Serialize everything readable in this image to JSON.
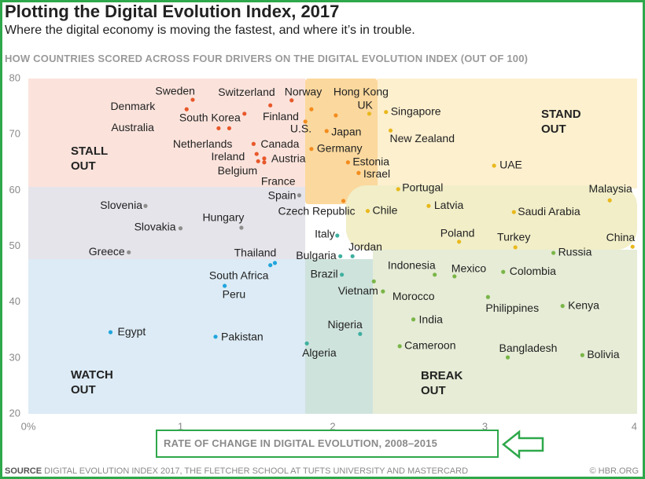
{
  "chart_data": {
    "type": "scatter",
    "title": "Plotting the Digital Evolution Index, 2017",
    "subtitle": "Where the digital economy is moving the fastest, and where it’s in trouble.",
    "heading": "HOW COUNTRIES SCORED ACROSS FOUR DRIVERS ON THE DIGITAL EVOLUTION INDEX (OUT OF 100)",
    "x_label": "RATE OF CHANGE IN DIGITAL EVOLUTION, 2008–2015",
    "source_label": "SOURCE",
    "source": "DIGITAL EVOLUTION INDEX 2017, THE FLETCHER SCHOOL AT TUFTS UNIVERSITY AND MASTERCARD",
    "credit": "© HBR.ORG",
    "quadrants": [
      "STALL OUT",
      "STAND OUT",
      "WATCH OUT",
      "BREAK OUT"
    ],
    "xlim": [
      0,
      4
    ],
    "ylim": [
      20,
      80
    ],
    "xticks": [
      {
        "value": 0,
        "label": "0%"
      },
      1,
      2,
      3,
      4
    ],
    "yticks": [
      20,
      30,
      40,
      50,
      60,
      70,
      80
    ],
    "points": [
      {
        "label": "Sweden",
        "x": 1.08,
        "y": 76.2,
        "color": "#e8582a"
      },
      {
        "label": "Denmark",
        "x": 1.04,
        "y": 74.5,
        "color": "#e8582a"
      },
      {
        "label": "Switzerland",
        "x": 1.59,
        "y": 75.2,
        "color": "#e8582a"
      },
      {
        "label": "Norway",
        "x": 1.73,
        "y": 76.1,
        "color": "#e8582a"
      },
      {
        "label": "Hong Kong",
        "x": 2.02,
        "y": 73.4,
        "color": "#f28c1e"
      },
      {
        "label": "UK",
        "x": 2.24,
        "y": 73.7,
        "color": "#e9b81c"
      },
      {
        "label": "Singapore",
        "x": 2.35,
        "y": 74.0,
        "color": "#e9b81c"
      },
      {
        "label": "Finland",
        "x": 1.86,
        "y": 74.5,
        "color": "#f28c1e"
      },
      {
        "label": "South Korea",
        "x": 1.42,
        "y": 73.7,
        "color": "#e8582a"
      },
      {
        "label": "Australia",
        "x": 1.25,
        "y": 71.1,
        "color": "#e8582a"
      },
      {
        "label": "U.S.",
        "x": 1.82,
        "y": 72.3,
        "color": "#f28c1e"
      },
      {
        "label": "Japan",
        "x": 1.96,
        "y": 70.6,
        "color": "#f28c1e"
      },
      {
        "label": "New Zealand",
        "x": 2.38,
        "y": 70.7,
        "color": "#e9b81c"
      },
      {
        "label": "Netherlands",
        "x": 1.32,
        "y": 71.1,
        "color": "#e8582a"
      },
      {
        "label": "Canada",
        "x": 1.48,
        "y": 68.3,
        "color": "#e8582a"
      },
      {
        "label": "Germany",
        "x": 1.86,
        "y": 67.4,
        "color": "#f28c1e"
      },
      {
        "label": "Ireland",
        "x": 1.5,
        "y": 66.5,
        "color": "#e8582a"
      },
      {
        "label": "Austria",
        "x": 1.55,
        "y": 65.7,
        "color": "#e8582a"
      },
      {
        "label": "Belgium",
        "x": 1.51,
        "y": 65.2,
        "color": "#e8582a"
      },
      {
        "label": "France",
        "x": 1.55,
        "y": 65.0,
        "color": "#e8582a"
      },
      {
        "label": "Estonia",
        "x": 2.1,
        "y": 65.0,
        "color": "#f28c1e"
      },
      {
        "label": "Israel",
        "x": 2.17,
        "y": 63.1,
        "color": "#f28c1e"
      },
      {
        "label": "UAE",
        "x": 3.06,
        "y": 64.4,
        "color": "#e9b81c"
      },
      {
        "label": "Spain",
        "x": 1.78,
        "y": 59.1,
        "color": "#8e8e8e"
      },
      {
        "label": "Czech Republic",
        "x": 2.07,
        "y": 58.1,
        "color": "#f28c1e"
      },
      {
        "label": "Portugal",
        "x": 2.43,
        "y": 60.2,
        "color": "#e9b81c"
      },
      {
        "label": "Chile",
        "x": 2.23,
        "y": 56.3,
        "color": "#e9b81c"
      },
      {
        "label": "Latvia",
        "x": 2.63,
        "y": 57.2,
        "color": "#e9b81c"
      },
      {
        "label": "Saudi Arabia",
        "x": 3.19,
        "y": 56.1,
        "color": "#e9b81c"
      },
      {
        "label": "Malaysia",
        "x": 3.82,
        "y": 58.2,
        "color": "#e9b81c"
      },
      {
        "label": "Slovenia",
        "x": 0.77,
        "y": 57.2,
        "color": "#8e8e8e"
      },
      {
        "label": "Slovakia",
        "x": 1.0,
        "y": 53.2,
        "color": "#8e8e8e"
      },
      {
        "label": "Hungary",
        "x": 1.4,
        "y": 53.3,
        "color": "#8e8e8e"
      },
      {
        "label": "Greece",
        "x": 0.66,
        "y": 48.9,
        "color": "#8e8e8e"
      },
      {
        "label": "Italy",
        "x": 2.03,
        "y": 51.9,
        "color": "#3fb0a0"
      },
      {
        "label": "Poland",
        "x": 2.83,
        "y": 50.8,
        "color": "#e9b81c"
      },
      {
        "label": "Turkey",
        "x": 3.2,
        "y": 49.8,
        "color": "#e9b81c"
      },
      {
        "label": "China",
        "x": 3.97,
        "y": 49.9,
        "color": "#e9b81c"
      },
      {
        "label": "Russia",
        "x": 3.45,
        "y": 48.8,
        "color": "#7ab648"
      },
      {
        "label": "Bulgaria",
        "x": 2.05,
        "y": 48.2,
        "color": "#3fb0a0"
      },
      {
        "label": "Jordan",
        "x": 2.13,
        "y": 48.2,
        "color": "#3fb0a0"
      },
      {
        "label": "Thailand",
        "x": 1.62,
        "y": 47.0,
        "color": "#21a5dc"
      },
      {
        "label": "South Africa",
        "x": 1.59,
        "y": 46.6,
        "color": "#21a5dc"
      },
      {
        "label": "Indonesia",
        "x": 2.67,
        "y": 44.9,
        "color": "#7ab648"
      },
      {
        "label": "Mexico",
        "x": 2.8,
        "y": 44.6,
        "color": "#7ab648"
      },
      {
        "label": "Colombia",
        "x": 3.12,
        "y": 45.4,
        "color": "#7ab648"
      },
      {
        "label": "Brazil",
        "x": 2.06,
        "y": 44.9,
        "color": "#3fb0a0"
      },
      {
        "label": "Vietnam",
        "x": 2.27,
        "y": 43.7,
        "color": "#7ab648"
      },
      {
        "label": "Peru",
        "x": 1.29,
        "y": 42.9,
        "color": "#21a5dc"
      },
      {
        "label": "Egypt",
        "x": 0.54,
        "y": 34.6,
        "color": "#21a5dc"
      },
      {
        "label": "Pakistan",
        "x": 1.23,
        "y": 33.8,
        "color": "#21a5dc"
      },
      {
        "label": "Philippines",
        "x": 3.02,
        "y": 40.9,
        "color": "#7ab648"
      },
      {
        "label": "Kenya",
        "x": 3.51,
        "y": 39.3,
        "color": "#7ab648"
      },
      {
        "label": "Morocco",
        "x": 2.33,
        "y": 41.9,
        "color": "#7ab648"
      },
      {
        "label": "India",
        "x": 2.53,
        "y": 36.9,
        "color": "#7ab648"
      },
      {
        "label": "Nigeria",
        "x": 2.18,
        "y": 34.3,
        "color": "#3fb0a0"
      },
      {
        "label": "Algeria",
        "x": 1.83,
        "y": 32.6,
        "color": "#3fb0a0"
      },
      {
        "label": "Cameroon",
        "x": 2.44,
        "y": 32.1,
        "color": "#7ab648"
      },
      {
        "label": "Bangladesh",
        "x": 3.15,
        "y": 30.1,
        "color": "#7ab648"
      },
      {
        "label": "Bolivia",
        "x": 3.64,
        "y": 30.5,
        "color": "#7ab648"
      }
    ]
  }
}
